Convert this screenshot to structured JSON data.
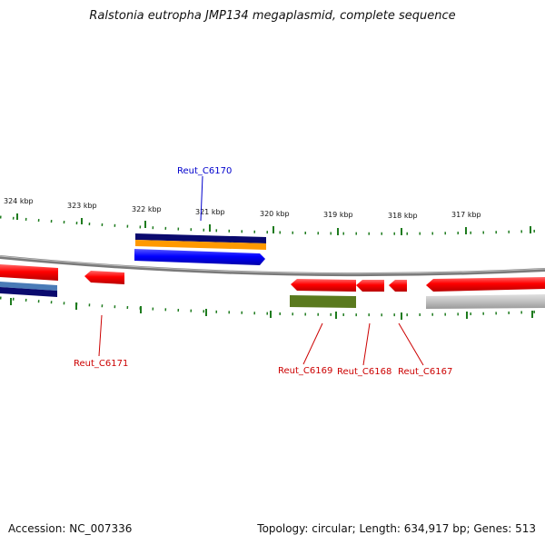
{
  "title": "Ralstonia eutropha JMP134 megaplasmid, complete sequence",
  "footer": {
    "accession": "Accession: NC_007336",
    "topology": "Topology: circular; Length: 634,917 bp; Genes: 513"
  },
  "scale_labels": [
    "324 kbp",
    "323 kbp",
    "322 kbp",
    "321 kbp",
    "320 kbp",
    "319 kbp",
    "318 kbp",
    "317 kbp"
  ],
  "gene_labels": [
    "Reut_C6170",
    "Reut_C6171",
    "Reut_C6169",
    "Reut_C6168",
    "Reut_C6167"
  ],
  "colors": {
    "cds_forward": "#ff0000",
    "cds_reverse": "#ff0000",
    "label_forward": "#0000cc",
    "label_reverse": "#cc0000",
    "backbone": "#808080",
    "tick": "#1e7b1e",
    "track_navy": "#0a0a6e",
    "track_orange": "#ff9900",
    "track_blue": "#0000ff",
    "track_steel": "#4a7bb7",
    "track_olive": "#5a7a1e",
    "track_gray": "#c0c0c0"
  }
}
